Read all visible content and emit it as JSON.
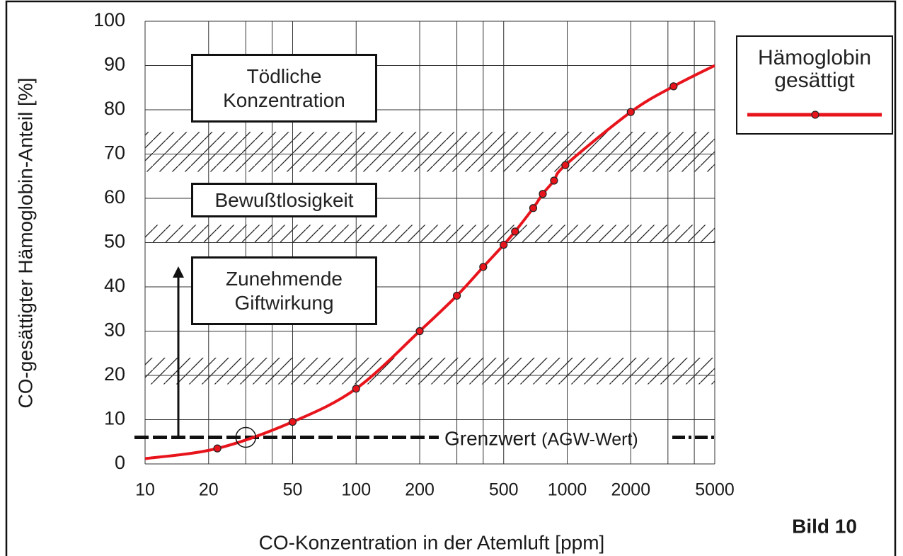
{
  "chart_data": {
    "type": "line",
    "x_label": "CO-Konzentration in der Atemluft [ppm]",
    "y_label": "CO-gesättigter Hämoglobin-Anteil [%]",
    "xscale": "log",
    "xlim": [
      10,
      5000
    ],
    "xticks": [
      10,
      20,
      50,
      100,
      200,
      500,
      1000,
      2000,
      5000
    ],
    "xgrid_minor": [
      30,
      40,
      300,
      400,
      3000,
      4000
    ],
    "ylim": [
      0,
      100
    ],
    "yticks": [
      0,
      10,
      20,
      30,
      40,
      50,
      60,
      70,
      80,
      90,
      100
    ],
    "grid": true,
    "series": [
      {
        "name": "Hämoglobin gesättigt",
        "color": "#e8141c",
        "x": [
          22,
          50,
          100,
          200,
          300,
          400,
          500,
          566,
          690,
          766,
          866,
          980,
          2000,
          3190
        ],
        "values": [
          3.5,
          9.5,
          17,
          30,
          38,
          44.5,
          49.5,
          52.5,
          57.8,
          61,
          64,
          67.5,
          79.5,
          85.3
        ],
        "curve": {
          "x": [
            10,
            22,
            50,
            100,
            200,
            300,
            400,
            500,
            566,
            690,
            766,
            866,
            980,
            2000,
            3190,
            5000
          ],
          "values": [
            1.2,
            3.5,
            9.5,
            17,
            30,
            38,
            44.5,
            49.5,
            52.5,
            57.8,
            61,
            64,
            67.5,
            79.5,
            85.3,
            90
          ]
        }
      }
    ],
    "bands": [
      [
        18,
        24
      ],
      [
        50,
        54
      ],
      [
        66,
        75
      ]
    ],
    "annotations": [
      "Tödliche Konzentration",
      "Bewußtlosigkeit",
      "Zunehmende Giftwirkung"
    ],
    "threshold": {
      "value": 6,
      "label": "Grenzwert",
      "sublabel": "(AGW-Wert)",
      "x": 30
    },
    "figure_label": "Bild 10"
  }
}
